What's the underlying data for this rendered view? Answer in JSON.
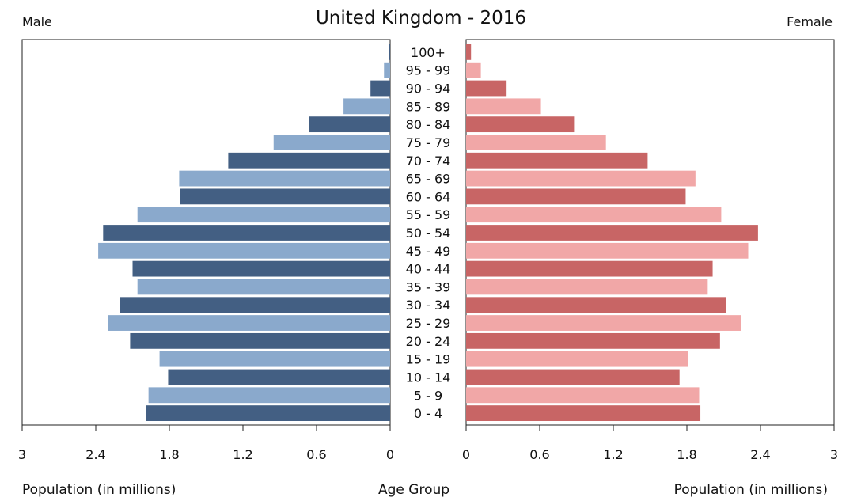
{
  "chart_data": {
    "type": "bar",
    "title": "United Kingdom - 2016",
    "left_label": "Male",
    "right_label": "Female",
    "xlabel_left": "Population (in millions)",
    "xlabel_center": "Age Group",
    "xlabel_right": "Population (in millions)",
    "xlim": [
      0,
      3
    ],
    "male_ticks": [
      "3",
      "2.4",
      "1.8",
      "1.2",
      "0.6",
      "0"
    ],
    "female_ticks": [
      "0",
      "0.6",
      "1.2",
      "1.8",
      "2.4",
      "3"
    ],
    "categories": [
      "100+",
      "95 - 99",
      "90 - 94",
      "85 - 89",
      "80 - 84",
      "75 - 79",
      "70 - 74",
      "65 - 69",
      "60 - 64",
      "55 - 59",
      "50 - 54",
      "45 - 49",
      "40 - 44",
      "35 - 39",
      "30 - 34",
      "25 - 29",
      "20 - 24",
      "15 - 19",
      "10 - 14",
      "5 - 9",
      "0 - 4"
    ],
    "series": [
      {
        "name": "Male",
        "values": [
          0.01,
          0.05,
          0.16,
          0.38,
          0.66,
          0.95,
          1.32,
          1.72,
          1.71,
          2.06,
          2.34,
          2.38,
          2.1,
          2.06,
          2.2,
          2.3,
          2.12,
          1.88,
          1.81,
          1.97,
          1.99
        ]
      },
      {
        "name": "Female",
        "values": [
          0.04,
          0.12,
          0.33,
          0.61,
          0.88,
          1.14,
          1.48,
          1.87,
          1.79,
          2.08,
          2.38,
          2.3,
          2.01,
          1.97,
          2.12,
          2.24,
          2.07,
          1.81,
          1.74,
          1.9,
          1.91
        ]
      }
    ],
    "colors": {
      "male_dark": "#435f83",
      "male_light": "#8aa9cc",
      "female_dark": "#c86565",
      "female_light": "#f1a7a7"
    },
    "grid": false
  }
}
